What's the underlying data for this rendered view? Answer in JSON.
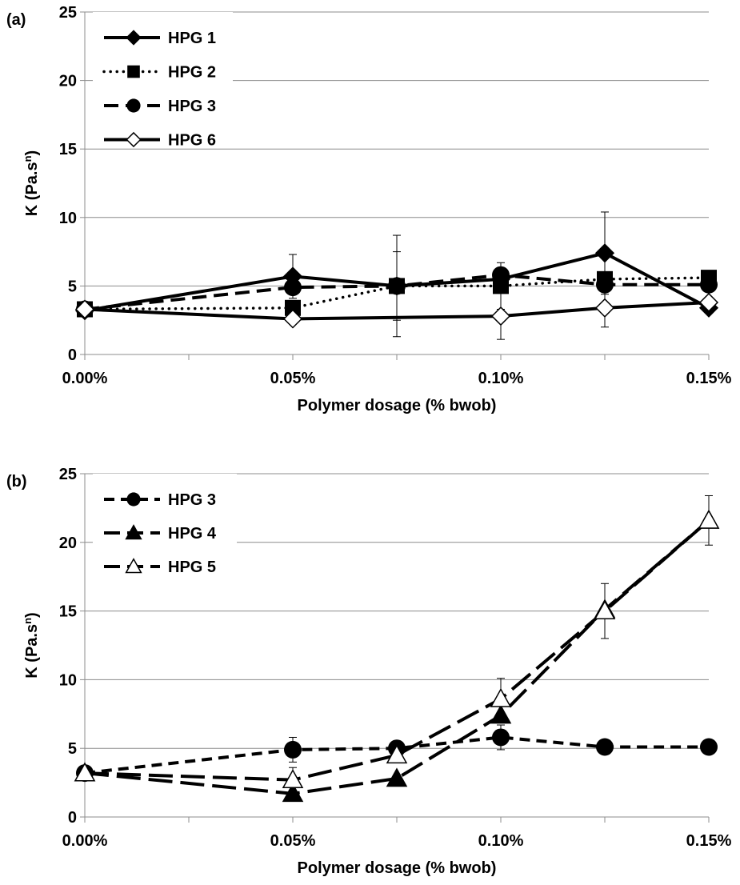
{
  "chart_data": [
    {
      "type": "line",
      "panel_label": "(a)",
      "xlabel": "Polymer dosage (% bwob)",
      "ylabel": "K (Pa.s",
      "ylabel_sup": "n",
      "ylabel_end": ")",
      "xlim": [
        0,
        0.15
      ],
      "ylim": [
        0,
        25
      ],
      "xticks": [
        0,
        0.05,
        0.1,
        0.15
      ],
      "xtick_labels": [
        "0.00%",
        "0.05%",
        "0.10%",
        "0.15%"
      ],
      "yticks": [
        0,
        5,
        10,
        15,
        20,
        25
      ],
      "ytick_labels": [
        "0",
        "5",
        "10",
        "15",
        "20",
        "25"
      ],
      "grid": "horizontal",
      "legend_position": "top-left",
      "series": [
        {
          "name": "HPG 1",
          "marker": "diamond-filled",
          "line": "solid",
          "x": [
            0,
            0.05,
            0.075,
            0.1,
            0.125,
            0.15
          ],
          "y": [
            3.2,
            5.7,
            5.0,
            5.5,
            7.4,
            3.4
          ],
          "err": [
            0,
            1.6,
            2.5,
            0,
            3.0,
            0
          ]
        },
        {
          "name": "HPG 2",
          "marker": "square-filled",
          "line": "dotted",
          "x": [
            0,
            0.05,
            0.075,
            0.1,
            0.125,
            0.15
          ],
          "y": [
            3.3,
            3.4,
            5.0,
            5.0,
            5.5,
            5.6
          ],
          "err": [
            0,
            0,
            3.7,
            1.7,
            0,
            0
          ]
        },
        {
          "name": "HPG 3",
          "marker": "circle-filled",
          "line": "dashed",
          "x": [
            0,
            0.05,
            0.075,
            0.1,
            0.125,
            0.15
          ],
          "y": [
            3.3,
            4.9,
            5.0,
            5.8,
            5.1,
            5.1
          ],
          "err": [
            0,
            0,
            0,
            0,
            0,
            0
          ]
        },
        {
          "name": "HPG 6",
          "marker": "diamond-open",
          "line": "solid",
          "x": [
            0,
            0.05,
            0.1,
            0.125,
            0.15
          ],
          "y": [
            3.3,
            2.6,
            2.8,
            3.4,
            3.8
          ],
          "err": [
            0,
            0,
            1.7,
            1.4,
            0
          ]
        }
      ]
    },
    {
      "type": "line",
      "panel_label": "(b)",
      "xlabel": "Polymer dosage (% bwob)",
      "ylabel": "K (Pa.s",
      "ylabel_sup": "n",
      "ylabel_end": ")",
      "xlim": [
        0,
        0.15
      ],
      "ylim": [
        0,
        25
      ],
      "xticks": [
        0,
        0.05,
        0.1,
        0.15
      ],
      "xtick_labels": [
        "0.00%",
        "0.05%",
        "0.10%",
        "0.15%"
      ],
      "yticks": [
        0,
        5,
        10,
        15,
        20,
        25
      ],
      "ytick_labels": [
        "0",
        "5",
        "10",
        "15",
        "20",
        "25"
      ],
      "grid": "horizontal",
      "legend_position": "top-left",
      "series": [
        {
          "name": "HPG 3",
          "marker": "circle-filled",
          "line": "short-dash",
          "x": [
            0,
            0.05,
            0.075,
            0.1,
            0.125,
            0.15
          ],
          "y": [
            3.2,
            4.9,
            5.0,
            5.8,
            5.1,
            5.1
          ],
          "err": [
            0,
            0.9,
            0,
            0.9,
            0,
            0
          ]
        },
        {
          "name": "HPG 4",
          "marker": "triangle-filled",
          "line": "long-dash",
          "x": [
            0,
            0.05,
            0.075,
            0.1,
            0.125,
            0.15
          ],
          "y": [
            3.2,
            1.7,
            2.8,
            7.4,
            15.1,
            21.6
          ],
          "err": [
            0,
            0,
            0,
            0,
            0,
            0
          ]
        },
        {
          "name": "HPG 5",
          "marker": "triangle-open",
          "line": "long-dash",
          "x": [
            0,
            0.05,
            0.075,
            0.1,
            0.125,
            0.15
          ],
          "y": [
            3.2,
            2.7,
            4.5,
            8.6,
            15.0,
            21.6
          ],
          "err": [
            0,
            0.9,
            0,
            1.5,
            2.0,
            1.8
          ]
        }
      ]
    }
  ]
}
